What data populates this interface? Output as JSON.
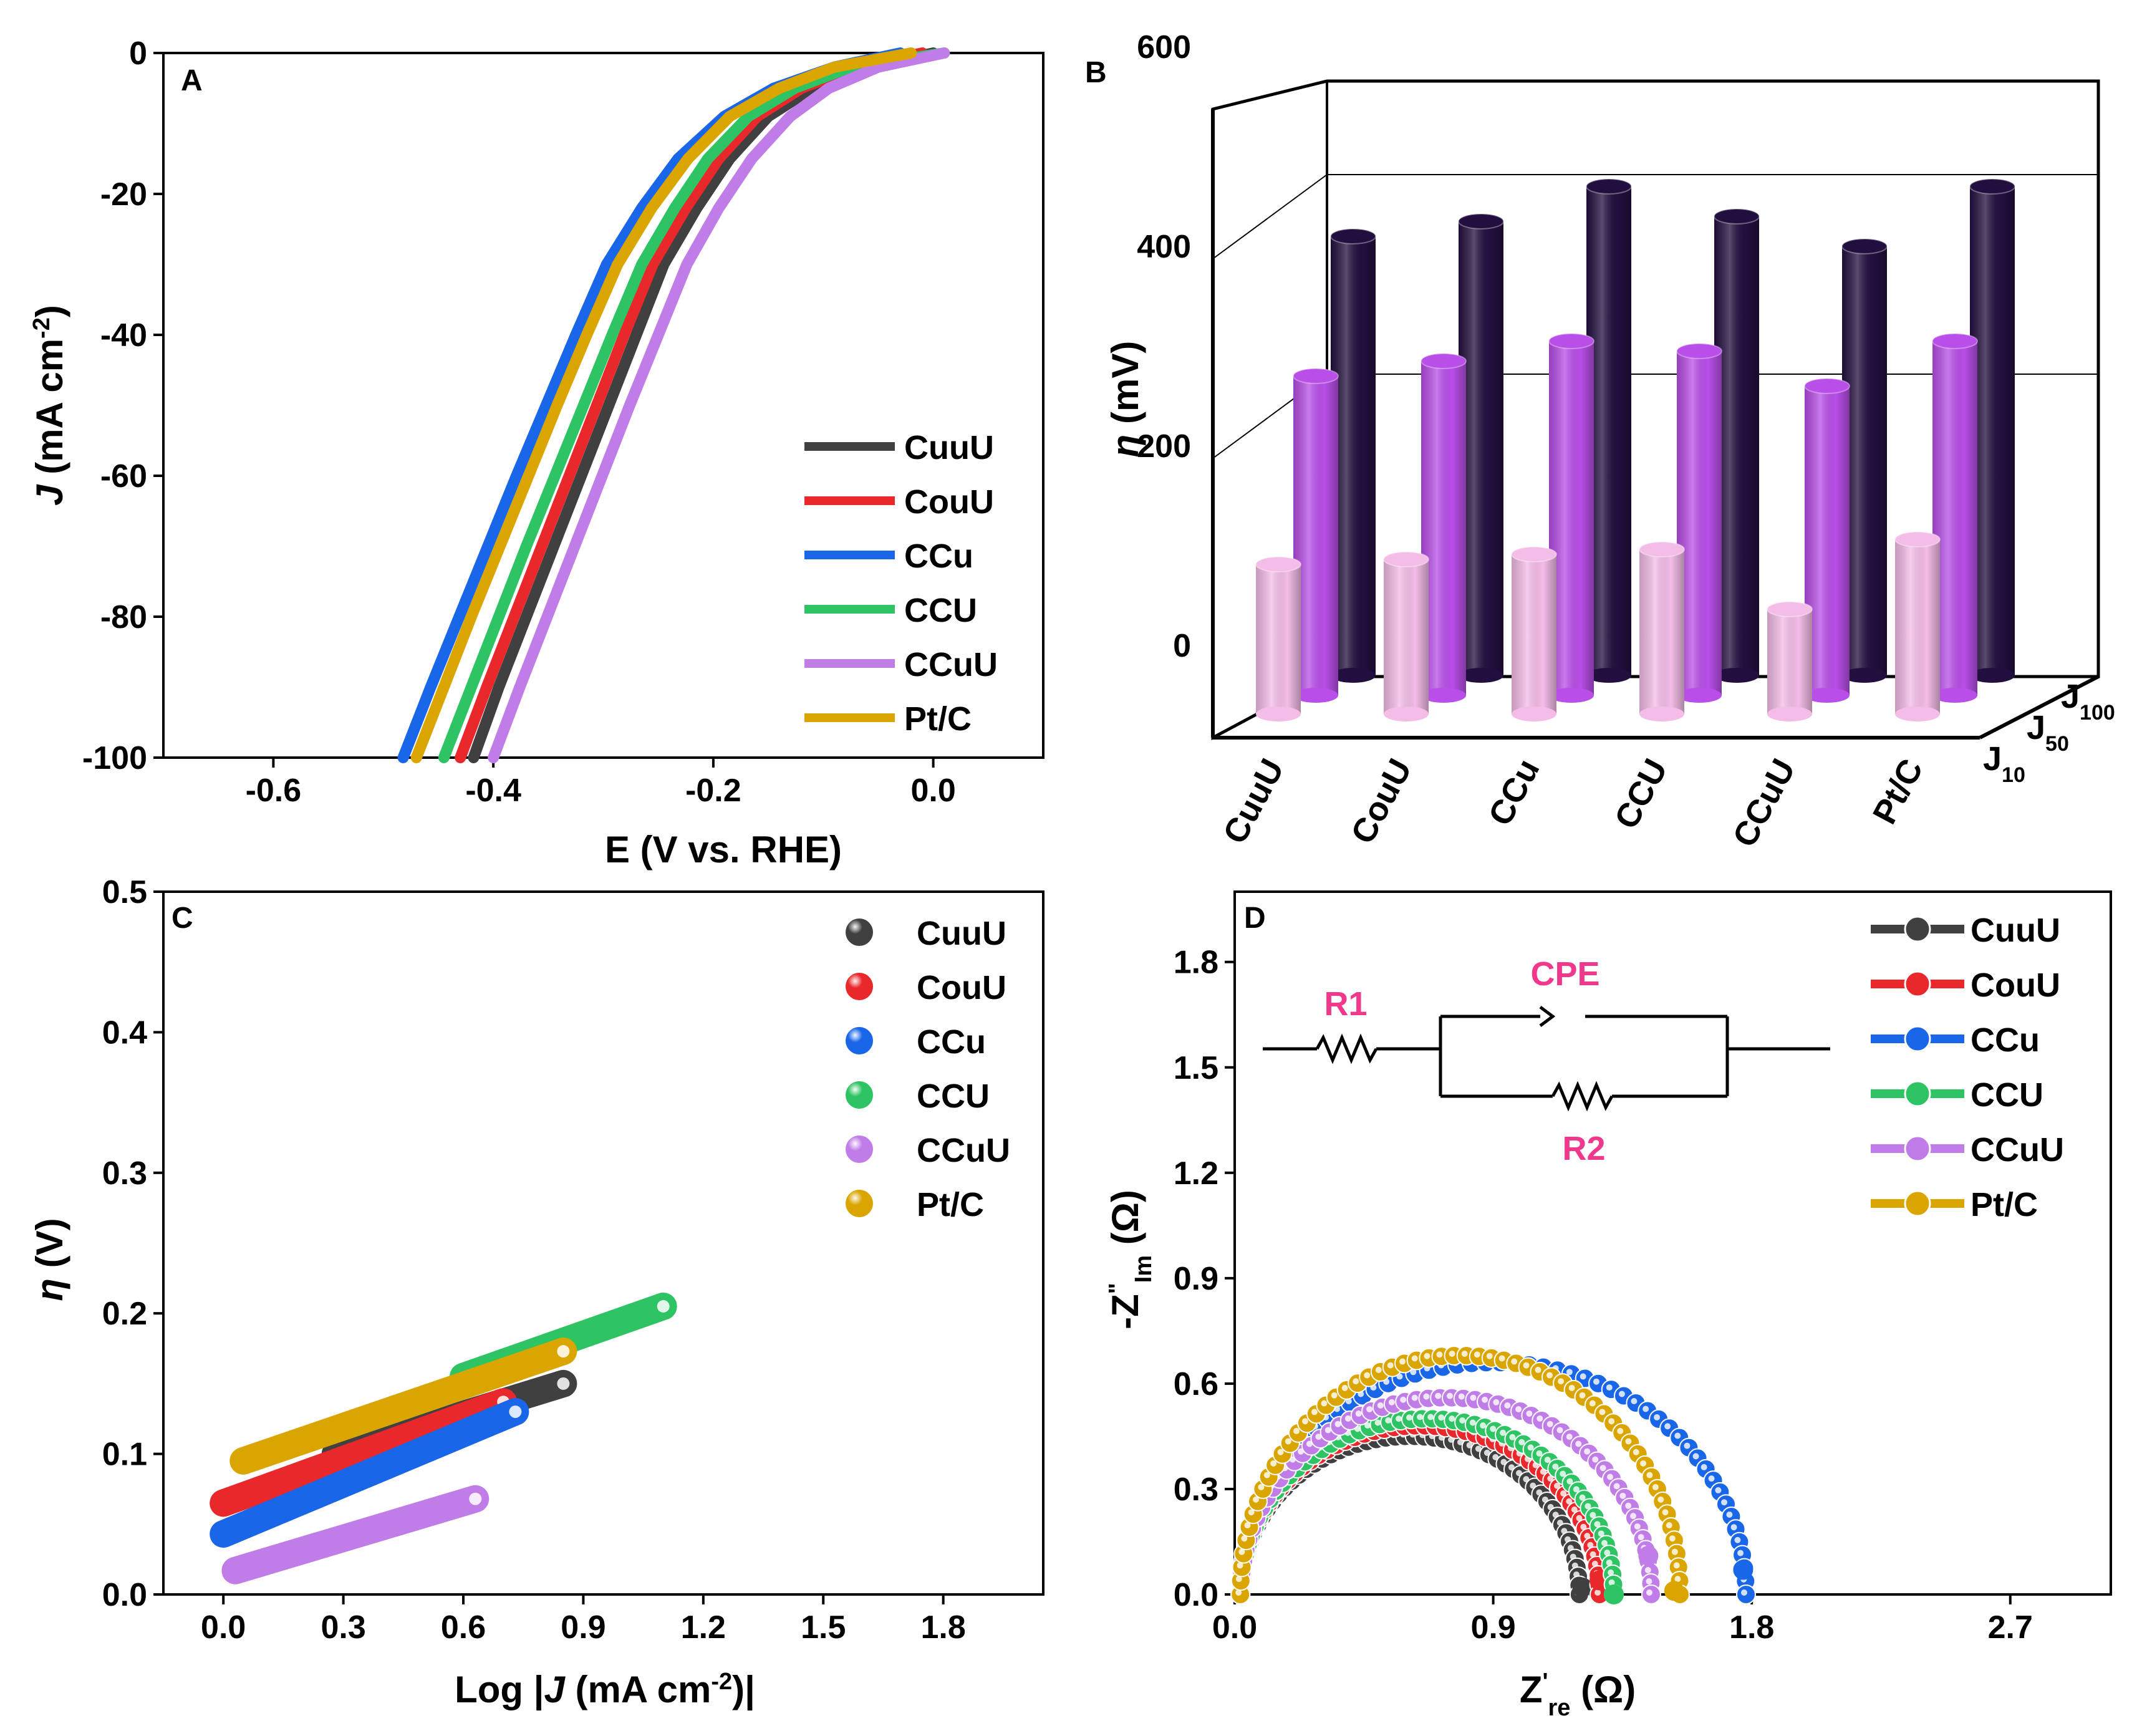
{
  "chart_data": [
    {
      "panel": "A",
      "type": "line",
      "xlabel": "E (V vs. RHE)",
      "ylabel": {
        "prefix": "J",
        "text": " (mA cm",
        "sup": "-2",
        "suffix": ")"
      },
      "xlim": [
        -0.7,
        0.1
      ],
      "ylim": [
        -100,
        0
      ],
      "xticks": [
        -0.6,
        -0.4,
        -0.2,
        0.0
      ],
      "xtick_labels": [
        "-0.6",
        "-0.4",
        "-0.2",
        "0.0"
      ],
      "yticks": [
        0,
        -20,
        -40,
        -60,
        -80,
        -100
      ],
      "ytick_labels": [
        "0",
        "-20",
        "-40",
        "-60",
        "-80",
        "-100"
      ],
      "legend_position": "bottom-right",
      "series": [
        {
          "name": "CuuU",
          "color": "#404040",
          "x": [
            -0.418,
            -0.395,
            -0.37,
            -0.345,
            -0.32,
            -0.295,
            -0.27,
            -0.245,
            -0.215,
            -0.185,
            -0.15,
            -0.11,
            -0.06,
            0.0
          ],
          "y": [
            -100,
            -90,
            -80,
            -70,
            -60,
            -50,
            -40,
            -30,
            -22,
            -15,
            -9,
            -5,
            -2,
            0
          ]
        },
        {
          "name": "CouU",
          "color": "#e8282b",
          "x": [
            -0.43,
            -0.406,
            -0.381,
            -0.356,
            -0.331,
            -0.306,
            -0.281,
            -0.255,
            -0.225,
            -0.195,
            -0.16,
            -0.12,
            -0.07,
            -0.01
          ],
          "y": [
            -100,
            -90,
            -80,
            -70,
            -60,
            -50,
            -40,
            -30,
            -22,
            -15,
            -9,
            -5,
            -2,
            0
          ]
        },
        {
          "name": "CCu",
          "color": "#1a66e8",
          "x": [
            -0.482,
            -0.457,
            -0.431,
            -0.405,
            -0.379,
            -0.352,
            -0.325,
            -0.297,
            -0.265,
            -0.232,
            -0.19,
            -0.145,
            -0.09,
            -0.03
          ],
          "y": [
            -100,
            -90,
            -80,
            -70,
            -60,
            -50,
            -40,
            -30,
            -22,
            -15,
            -9,
            -5,
            -2,
            0
          ]
        },
        {
          "name": "CCU",
          "color": "#2ec463",
          "x": [
            -0.445,
            -0.42,
            -0.395,
            -0.37,
            -0.344,
            -0.318,
            -0.292,
            -0.265,
            -0.235,
            -0.205,
            -0.168,
            -0.126,
            -0.075,
            0.01
          ],
          "y": [
            -100,
            -90,
            -80,
            -70,
            -60,
            -50,
            -40,
            -30,
            -22,
            -15,
            -9,
            -5,
            -2,
            0
          ]
        },
        {
          "name": "CCuU",
          "color": "#c07de8",
          "x": [
            -0.4,
            -0.376,
            -0.351,
            -0.326,
            -0.301,
            -0.276,
            -0.25,
            -0.224,
            -0.195,
            -0.165,
            -0.13,
            -0.095,
            -0.05,
            0.01
          ],
          "y": [
            -100,
            -90,
            -80,
            -70,
            -60,
            -50,
            -40,
            -30,
            -22,
            -15,
            -9,
            -5,
            -2,
            0
          ]
        },
        {
          "name": "Pt/C",
          "color": "#dba500",
          "x": [
            -0.47,
            -0.445,
            -0.42,
            -0.394,
            -0.368,
            -0.342,
            -0.315,
            -0.287,
            -0.256,
            -0.223,
            -0.185,
            -0.14,
            -0.09,
            -0.02
          ],
          "y": [
            -100,
            -90,
            -80,
            -70,
            -60,
            -50,
            -40,
            -30,
            -22,
            -15,
            -9,
            -5,
            -2,
            0
          ]
        }
      ]
    },
    {
      "panel": "B",
      "type": "bar",
      "style": "3d",
      "ylabel": {
        "prefix": "η",
        "text": " (mV)"
      },
      "ylim": [
        0,
        600
      ],
      "yticks": [
        0,
        200,
        400,
        600
      ],
      "ytick_labels": [
        "0",
        "200",
        "400",
        "600"
      ],
      "categories": [
        "CuuU",
        "CouU",
        "CCu",
        "CCU",
        "CCuU",
        "Pt/C"
      ],
      "depth_labels": [
        {
          "base": "J",
          "sub": "10"
        },
        {
          "base": "J",
          "sub": "50"
        },
        {
          "base": "J",
          "sub": "100"
        }
      ],
      "series": [
        {
          "name": "J10",
          "color": "#f4bde8",
          "values": [
            150,
            155,
            160,
            165,
            105,
            175
          ]
        },
        {
          "name": "J50",
          "color": "#b94ee8",
          "values": [
            320,
            335,
            355,
            345,
            310,
            355
          ]
        },
        {
          "name": "J100",
          "color": "#230f3f",
          "values": [
            440,
            455,
            490,
            460,
            430,
            490
          ]
        }
      ]
    },
    {
      "panel": "C",
      "type": "scatter",
      "xlabel": {
        "text": "Log |",
        "italic": "J",
        "rest": " (mA cm",
        "sup": "-2",
        "end": ")|"
      },
      "ylabel": {
        "prefix": "η",
        "text": " (V)"
      },
      "xlim": [
        -0.15,
        2.05
      ],
      "ylim": [
        0.0,
        0.5
      ],
      "xticks": [
        0.0,
        0.3,
        0.6,
        0.9,
        1.2,
        1.5,
        1.8
      ],
      "xtick_labels": [
        "0.0",
        "0.3",
        "0.6",
        "0.9",
        "1.2",
        "1.5",
        "1.8"
      ],
      "yticks": [
        0.0,
        0.1,
        0.2,
        0.3,
        0.4,
        0.5
      ],
      "ytick_labels": [
        "0.0",
        "0.1",
        "0.2",
        "0.3",
        "0.4",
        "0.5"
      ],
      "legend_position": "top-right",
      "series": [
        {
          "name": "CuuU",
          "color": "#404040",
          "x": [
            0.28,
            0.85
          ],
          "y": [
            0.1,
            0.15
          ]
        },
        {
          "name": "CouU",
          "color": "#e8282b",
          "x": [
            0.0,
            0.7
          ],
          "y": [
            0.065,
            0.137
          ]
        },
        {
          "name": "CCu",
          "color": "#1a66e8",
          "x": [
            0.0,
            0.73
          ],
          "y": [
            0.043,
            0.13
          ]
        },
        {
          "name": "CCU",
          "color": "#2ec463",
          "x": [
            0.6,
            1.1
          ],
          "y": [
            0.155,
            0.205
          ]
        },
        {
          "name": "CCuU",
          "color": "#c07de8",
          "x": [
            0.03,
            0.63
          ],
          "y": [
            0.017,
            0.068
          ]
        },
        {
          "name": "Pt/C",
          "color": "#dba500",
          "x": [
            0.05,
            0.85
          ],
          "y": [
            0.095,
            0.173
          ]
        }
      ]
    },
    {
      "panel": "D",
      "type": "scatter",
      "xlabel": {
        "text": "Z",
        "sup": "'",
        "sub": "re",
        "rest": " (Ω)"
      },
      "ylabel": {
        "text": "-Z",
        "sup": "\"",
        "sub": "Im",
        "rest": " (Ω)"
      },
      "xlim": [
        0,
        3.05
      ],
      "ylim": [
        0,
        2.0
      ],
      "xticks": [
        0.0,
        0.9,
        1.8,
        2.7
      ],
      "xtick_labels": [
        "0.0",
        "0.9",
        "1.8",
        "2.7"
      ],
      "yticks": [
        0.0,
        0.3,
        0.6,
        0.9,
        1.2,
        1.5,
        1.8
      ],
      "ytick_labels": [
        "0.0",
        "0.3",
        "0.6",
        "0.9",
        "1.2",
        "1.5",
        "1.8"
      ],
      "legend_position": "top-right",
      "series": [
        {
          "name": "CuuU",
          "color": "#404040",
          "x_start": 0.02,
          "x_end": 1.2,
          "peak": 0.45,
          "last_point": [
            1.21,
            0.02
          ]
        },
        {
          "name": "CouU",
          "color": "#e8282b",
          "x_start": 0.02,
          "x_end": 1.27,
          "peak": 0.48,
          "last_point": [
            1.27,
            0.04
          ]
        },
        {
          "name": "CCu",
          "color": "#1a66e8",
          "x_start": 0.02,
          "x_end": 1.78,
          "peak": 0.66,
          "last_point": [
            1.77,
            0.07
          ]
        },
        {
          "name": "CCU",
          "color": "#2ec463",
          "x_start": 0.02,
          "x_end": 1.32,
          "peak": 0.5,
          "last_point": [
            1.32,
            0.0
          ]
        },
        {
          "name": "CCuU",
          "color": "#c07de8",
          "x_start": 0.02,
          "x_end": 1.45,
          "peak": 0.56,
          "last_point": [
            1.44,
            0.11
          ]
        },
        {
          "name": "Pt/C",
          "color": "#dba500",
          "x_start": 0.02,
          "x_end": 1.55,
          "peak": 0.68,
          "last_point": [
            1.53,
            0.01
          ]
        }
      ],
      "circuit": {
        "labels": [
          "R1",
          "CPE",
          "R2"
        ],
        "color": "#f0388c"
      }
    }
  ]
}
